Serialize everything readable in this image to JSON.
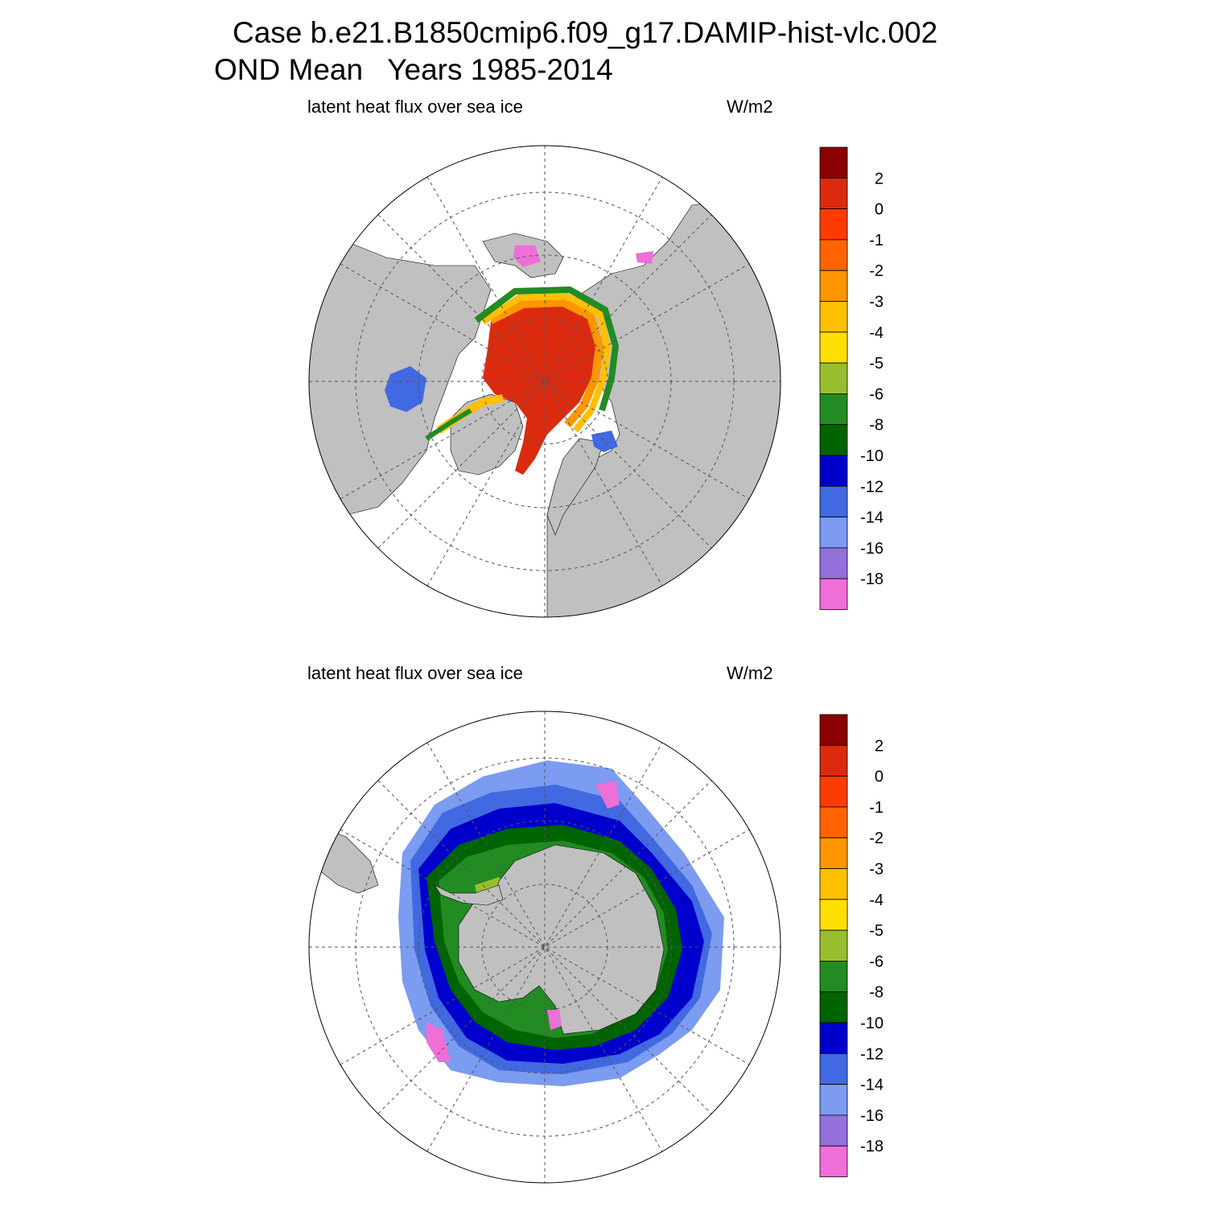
{
  "title": {
    "line1": "Case b.e21.B1850cmip6.f09_g17.DAMIP-hist-vlc.002",
    "line2": "OND Mean   Years 1985-2014"
  },
  "panels": [
    {
      "id": "arctic",
      "left_label": "latent heat flux over sea ice",
      "right_label": "W/m2",
      "hemisphere": "north"
    },
    {
      "id": "antarctic",
      "left_label": "latent heat flux over sea ice",
      "right_label": "W/m2",
      "hemisphere": "south"
    }
  ],
  "colorbar": {
    "tick_labels": [
      "2",
      "0",
      "-1",
      "-2",
      "-3",
      "-4",
      "-5",
      "-6",
      "-8",
      "-10",
      "-12",
      "-14",
      "-16",
      "-18"
    ],
    "colors": [
      "#8B0000",
      "#DC2A0F",
      "#FF3C00",
      "#FF6400",
      "#FF9600",
      "#FFC000",
      "#FFE000",
      "#98BE2E",
      "#228B22",
      "#006400",
      "#0000CD",
      "#4169E1",
      "#7B9CF0",
      "#9370DB",
      "#EE6FD8"
    ]
  },
  "map_colors": {
    "land": "#C0C0C0",
    "ocean": "#FFFFFF",
    "grid": "#555555"
  }
}
